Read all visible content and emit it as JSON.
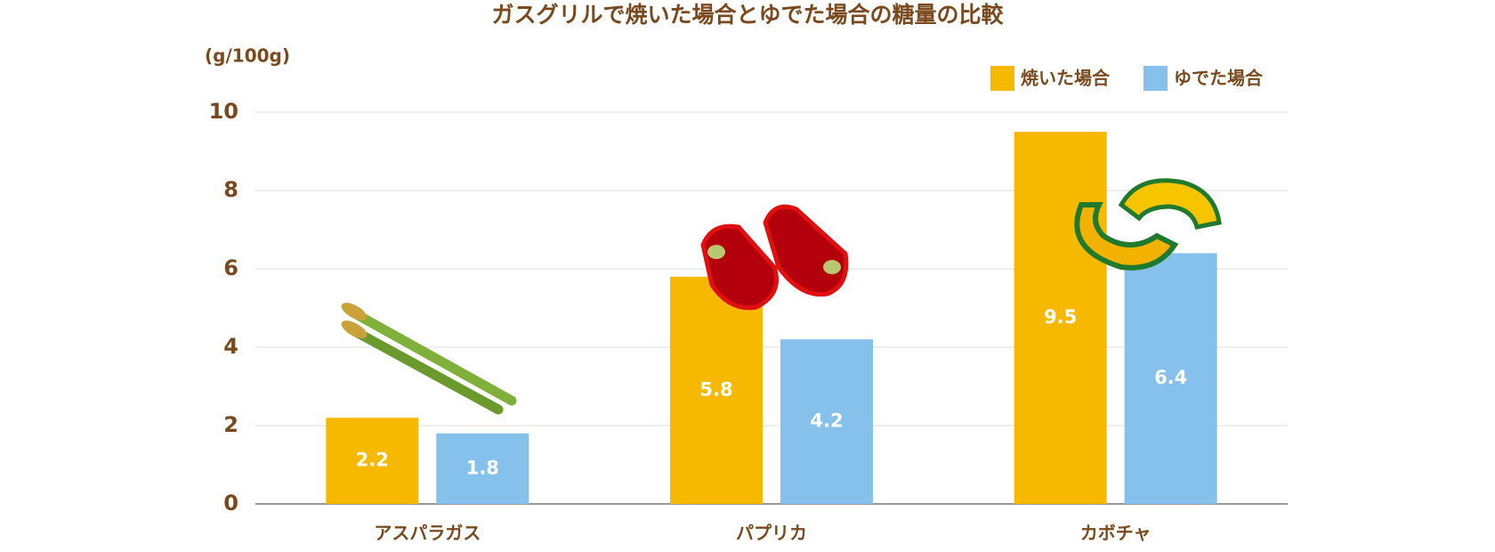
{
  "chart_data": {
    "type": "bar",
    "title": "ガスグリルで焼いた場合とゆでた場合の糖量の比較",
    "y_label": "(g/100g)",
    "categories": [
      "アスパラガス",
      "パプリカ",
      "カボチャ"
    ],
    "series": [
      {
        "name": "焼いた場合",
        "color": "#f7b900",
        "values": [
          2.2,
          5.8,
          9.5
        ]
      },
      {
        "name": "ゆでた場合",
        "color": "#85c1ea",
        "values": [
          1.8,
          4.2,
          6.4
        ]
      }
    ],
    "ylim": [
      0,
      10
    ],
    "yticks": [
      0,
      2,
      4,
      6,
      8,
      10
    ],
    "grid": true,
    "legend": "top-right"
  }
}
